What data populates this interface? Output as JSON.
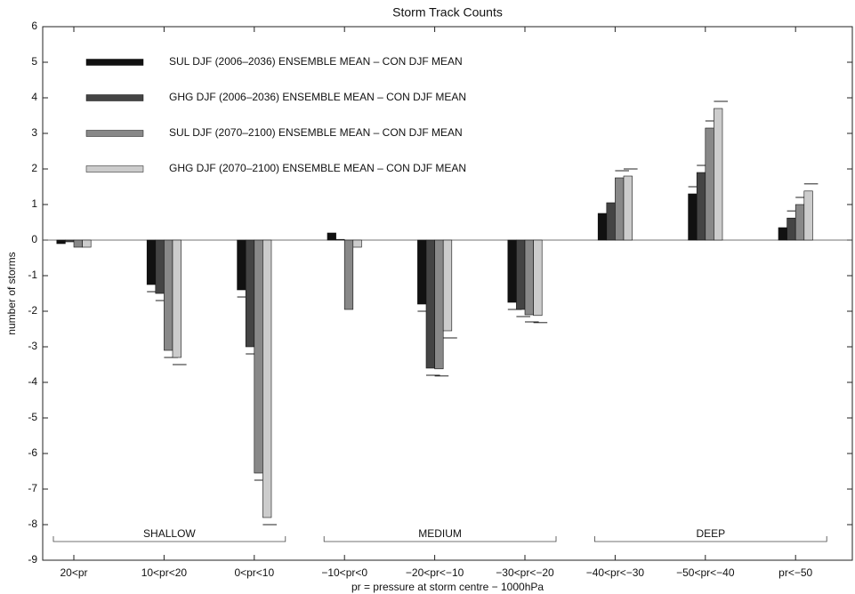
{
  "chart_data": {
    "type": "bar",
    "title": "Storm Track Counts",
    "xlabel": "pr = pressure at storm centre − 1000hPa",
    "ylabel": "number of storms",
    "categories": [
      "20<pr",
      "10<pr<20",
      "0<pr<10",
      "−10<pr<0",
      "−20<pr<−10",
      "−30<pr<−20",
      "−40<pr<−30",
      "−50<pr<−40",
      "pr<−50"
    ],
    "group_labels": [
      "SHALLOW",
      "MEDIUM",
      "DEEP"
    ],
    "series": [
      {
        "name": "SUL DJF (2006–2036) ENSEMBLE MEAN – CON DJF MEAN",
        "color": "#111111",
        "values": [
          -0.1,
          -1.25,
          -1.4,
          0.2,
          -1.8,
          -1.75,
          0.75,
          1.3,
          0.35
        ],
        "errors": [
          null,
          0.2,
          0.2,
          null,
          0.2,
          0.2,
          null,
          0.2,
          null
        ]
      },
      {
        "name": "GHG DJF (2006–2036) ENSEMBLE MEAN – CON DJF MEAN",
        "color": "#444444",
        "values": [
          -0.05,
          -1.5,
          -3.0,
          0.02,
          -3.6,
          -1.95,
          1.05,
          1.9,
          0.62
        ],
        "errors": [
          null,
          0.2,
          0.2,
          null,
          0.2,
          0.2,
          null,
          0.2,
          0.2
        ]
      },
      {
        "name": "SUL DJF (2070–2100) ENSEMBLE MEAN – CON DJF MEAN",
        "color": "#888888",
        "values": [
          -0.2,
          -3.1,
          -6.55,
          -1.95,
          -3.62,
          -2.1,
          1.75,
          3.15,
          1.0
        ],
        "errors": [
          null,
          0.2,
          0.2,
          null,
          0.2,
          0.2,
          0.2,
          0.2,
          0.2
        ]
      },
      {
        "name": "GHG DJF (2070–2100) ENSEMBLE MEAN – CON DJF MEAN",
        "color": "#cccccc",
        "values": [
          -0.2,
          -3.3,
          -7.8,
          -0.2,
          -2.55,
          -2.12,
          1.8,
          3.7,
          1.38
        ],
        "errors": [
          null,
          0.2,
          0.2,
          null,
          0.2,
          0.2,
          0.2,
          0.2,
          0.2
        ]
      }
    ],
    "ylim": [
      -9,
      6
    ],
    "yticks": [
      -9,
      -8,
      -7,
      -6,
      -5,
      -4,
      -3,
      -2,
      -1,
      0,
      1,
      2,
      3,
      4,
      5,
      6
    ],
    "legend": "upper left",
    "grid": false
  }
}
